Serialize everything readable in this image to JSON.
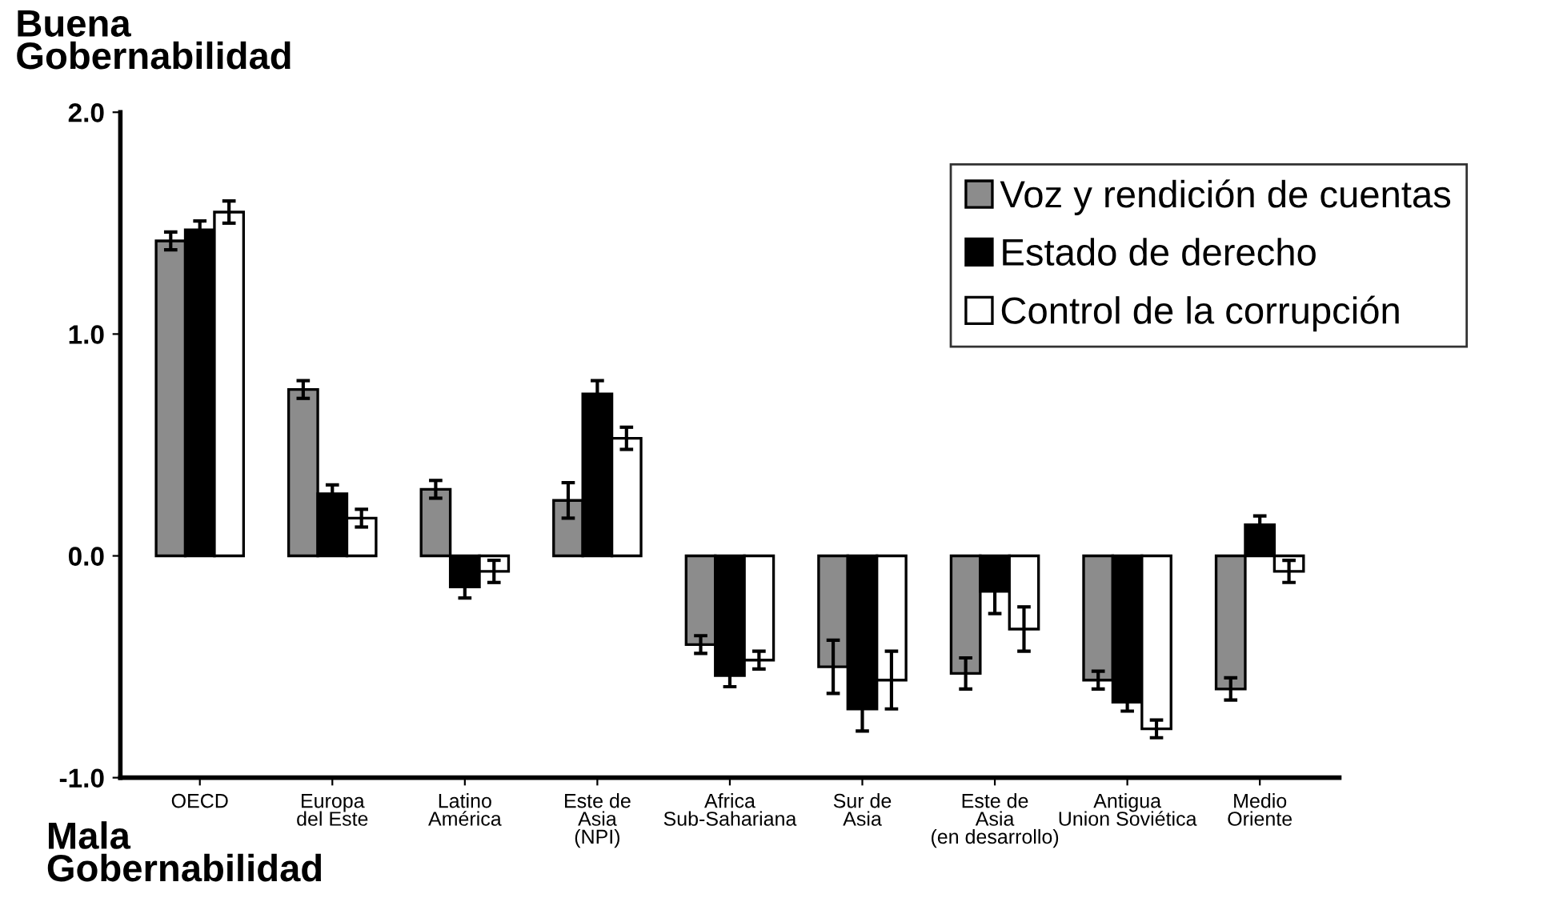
{
  "chart_data": {
    "type": "bar",
    "annotations": [
      "Buena\nGobernabilidad",
      "Mala\nGobernabilidad"
    ],
    "categories": [
      "OECD",
      "Europa\ndel Este",
      "Latino\nAmérica",
      "Este de\nAsia\n(NPI)",
      "Africa\nSub-Sahariana",
      "Sur de\nAsia",
      "Este de\nAsia\n(en desarrollo)",
      "Antigua\nUnion Soviética",
      "Medio\nOriente"
    ],
    "series": [
      {
        "name": "Voz y rendición de cuentas",
        "color": "#8c8c8c",
        "values": [
          1.42,
          0.75,
          0.3,
          0.25,
          -0.4,
          -0.5,
          -0.53,
          -0.56,
          -0.6
        ],
        "errors": [
          0.04,
          0.04,
          0.04,
          0.08,
          0.04,
          0.12,
          0.07,
          0.04,
          0.05
        ]
      },
      {
        "name": "Estado de derecho",
        "color": "#000000",
        "values": [
          1.47,
          0.28,
          -0.14,
          0.73,
          -0.54,
          -0.69,
          -0.16,
          -0.66,
          0.14
        ],
        "errors": [
          0.04,
          0.04,
          0.05,
          0.06,
          0.05,
          0.1,
          0.1,
          0.04,
          0.04
        ]
      },
      {
        "name": "Control de la corrupción",
        "color": "#ffffff",
        "values": [
          1.55,
          0.17,
          -0.07,
          0.53,
          -0.47,
          -0.56,
          -0.33,
          -0.78,
          -0.07
        ],
        "errors": [
          0.05,
          0.04,
          0.05,
          0.05,
          0.04,
          0.13,
          0.1,
          0.04,
          0.05
        ]
      }
    ],
    "ylim": [
      -1.0,
      2.0
    ],
    "yticks": [
      {
        "value": -1.0,
        "label": "-1.0"
      },
      {
        "value": 0.0,
        "label": "0.0"
      },
      {
        "value": 1.0,
        "label": "1.0"
      },
      {
        "value": 2.0,
        "label": "2.0"
      }
    ],
    "legend": "top right",
    "grid": false
  }
}
